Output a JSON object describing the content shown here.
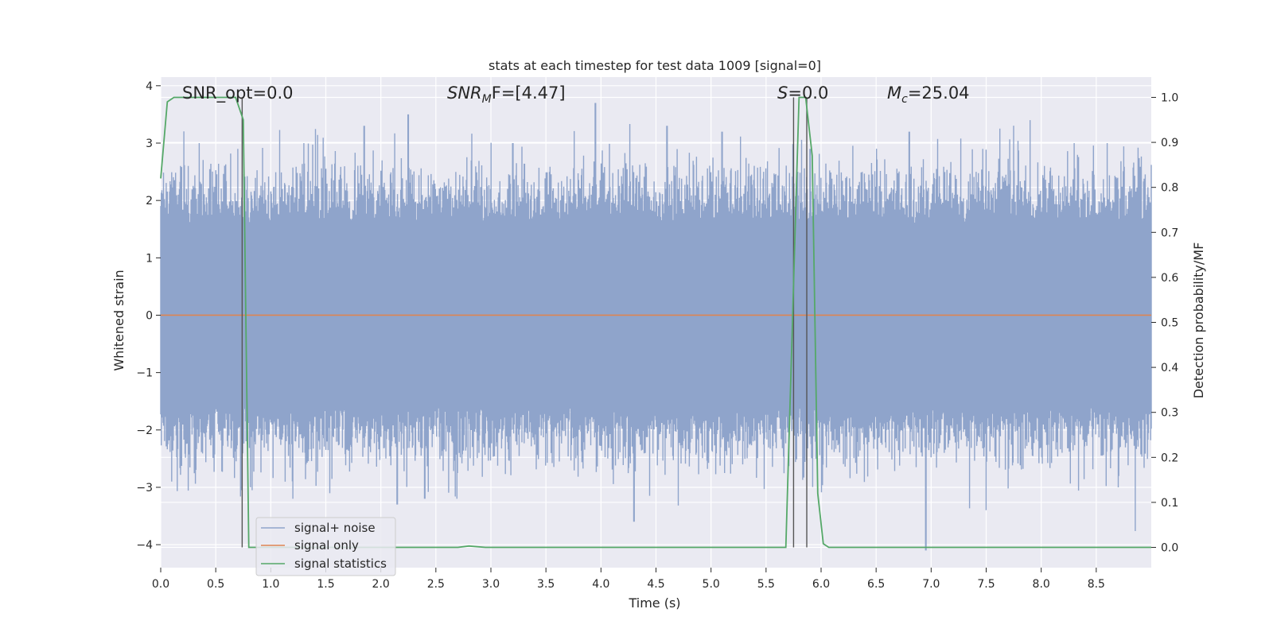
{
  "chart_data": {
    "type": "line",
    "title": "stats at each timestep for test data 1009 [signal=0]",
    "xlabel": "Time (s)",
    "ylabel": "Whitened strain",
    "y2label": "Detection probability/MF",
    "xlim": [
      0.0,
      9.0
    ],
    "ylim": [
      -4.4,
      4.15
    ],
    "y2lim": [
      -0.045,
      1.045
    ],
    "x_ticks": [
      "0.0",
      "0.5",
      "1.0",
      "1.5",
      "2.0",
      "2.5",
      "3.0",
      "3.5",
      "4.0",
      "4.5",
      "5.0",
      "5.5",
      "6.0",
      "6.5",
      "7.0",
      "7.5",
      "8.0",
      "8.5"
    ],
    "y_ticks": [
      "4",
      "3",
      "2",
      "1",
      "0",
      "−1",
      "−2",
      "−3",
      "−4"
    ],
    "y2_ticks": [
      "1.0",
      "0.9",
      "0.8",
      "0.7",
      "0.6",
      "0.5",
      "0.4",
      "0.3",
      "0.2",
      "0.1",
      "0.0"
    ],
    "grid": true,
    "legend_position": "lower-left",
    "annotations": {
      "snr_opt": "SNR_opt=0.0",
      "snr_mf_base": "SNR",
      "snr_mf_sub": "M",
      "snr_mf_tail": "F=[4.47]",
      "s_italic": "S",
      "s_tail": "=0.0",
      "mc_base": "M",
      "mc_sub": "c",
      "mc_tail": "=25.04"
    },
    "series": [
      {
        "name": "signal+ noise",
        "color": "#8fa4cb",
        "description_values": "noise band",
        "x_range": [
          0.0,
          9.0
        ],
        "approx_amplitude": 1.6,
        "peak_events": [
          {
            "x": 0.35,
            "y": 3.0
          },
          {
            "x": 0.7,
            "y": 2.9
          },
          {
            "x": 1.3,
            "y": 3.0
          },
          {
            "x": 1.8,
            "y": 2.3
          },
          {
            "x": 1.85,
            "y": 3.3
          },
          {
            "x": 2.25,
            "y": 3.5
          },
          {
            "x": 3.2,
            "y": 3.0
          },
          {
            "x": 3.95,
            "y": 3.7
          },
          {
            "x": 4.6,
            "y": 3.3
          },
          {
            "x": 5.1,
            "y": 3.2
          },
          {
            "x": 5.9,
            "y": 2.9
          },
          {
            "x": 6.8,
            "y": 3.2
          },
          {
            "x": 7.9,
            "y": 3.4
          },
          {
            "x": 8.3,
            "y": 3.0
          },
          {
            "x": 8.6,
            "y": 3.0
          },
          {
            "x": 1.2,
            "y": -3.2
          },
          {
            "x": 2.15,
            "y": -3.3
          },
          {
            "x": 2.4,
            "y": -3.2
          },
          {
            "x": 4.3,
            "y": -3.6
          },
          {
            "x": 6.95,
            "y": -4.1
          },
          {
            "x": 7.5,
            "y": -3.4
          },
          {
            "x": 0.1,
            "y": -2.9
          },
          {
            "x": 8.7,
            "y": -3.0
          }
        ]
      },
      {
        "name": "signal only",
        "color": "#dd8452",
        "x": [
          0.0,
          9.0
        ],
        "y": [
          0.0,
          0.0
        ]
      },
      {
        "name": "signal statistics",
        "color": "#55a868",
        "axis": "right",
        "x": [
          0.0,
          0.06,
          0.12,
          0.2,
          0.3,
          0.5,
          0.68,
          0.75,
          0.8,
          0.9,
          2.7,
          2.8,
          2.95,
          3.5,
          5.55,
          5.68,
          5.74,
          5.8,
          5.86,
          5.92,
          5.97,
          6.02,
          6.07,
          6.15,
          7.0,
          9.0
        ],
        "y": [
          0.82,
          0.99,
          1.0,
          1.0,
          1.0,
          1.0,
          1.0,
          0.95,
          0.0,
          0.0,
          0.0,
          0.003,
          0.0,
          0.0,
          0.0,
          0.0,
          0.5,
          1.0,
          1.0,
          0.87,
          0.12,
          0.008,
          0.0,
          0.0,
          0.0,
          0.0
        ]
      }
    ],
    "vlines": [
      0.74,
      5.75,
      5.87
    ]
  }
}
